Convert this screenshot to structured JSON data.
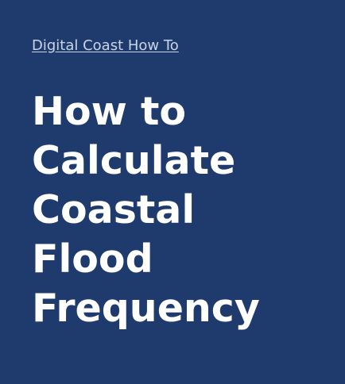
{
  "breadcrumb": {
    "label": "Digital Coast How To"
  },
  "title": {
    "lines": [
      "How to",
      "Calculate",
      "Coastal",
      "Flood",
      "Frequency"
    ]
  },
  "colors": {
    "background": "#1f3a6d",
    "link": "#c9d4e6",
    "title": "#ffffff"
  }
}
